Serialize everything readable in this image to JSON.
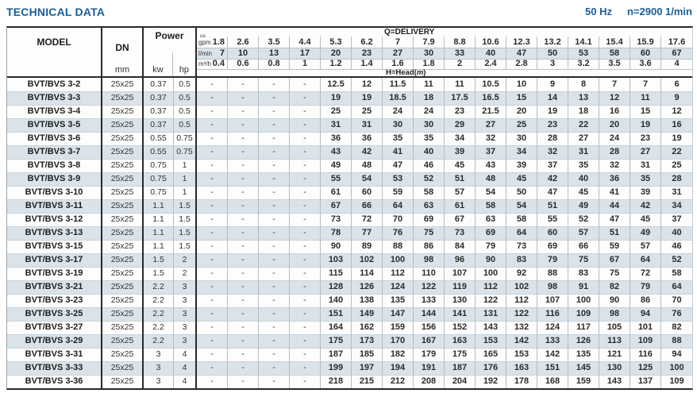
{
  "page": {
    "title": "TECHNICAL DATA",
    "frequency": "50 Hz",
    "speed": "n=2900 1/min"
  },
  "colors": {
    "accent_blue": "#1b5e97",
    "row_stripe": "#d9e3e9",
    "border_dark": "#2a2a2a"
  },
  "table": {
    "headers": {
      "model": "MODEL",
      "dn": "DN",
      "dn_unit": "mm",
      "power": "Power",
      "power_unit_kw": "kw",
      "power_unit_hp": "hp",
      "delivery_title": "Q=DELIVERY",
      "head_prefix": "H=Head(",
      "head_unit_italic": "m",
      "head_suffix": ")",
      "unit_rows": [
        {
          "label_top": "us",
          "label": "gpm",
          "values": [
            "1.8",
            "2.6",
            "3.5",
            "4.4",
            "5.3",
            "6.2",
            "7",
            "7.9",
            "8.8",
            "10.6",
            "12.3",
            "13.2",
            "14.1",
            "15.4",
            "15.9",
            "17.6"
          ]
        },
        {
          "label": "l/min",
          "values": [
            "7",
            "10",
            "13",
            "17",
            "20",
            "23",
            "27",
            "30",
            "33",
            "40",
            "47",
            "50",
            "53",
            "58",
            "60",
            "67"
          ]
        },
        {
          "label": "m³/h",
          "values": [
            "0.4",
            "0.6",
            "0.8",
            "1",
            "1.2",
            "1.4",
            "1.6",
            "1.8",
            "2",
            "2.4",
            "2.8",
            "3",
            "3.2",
            "3.5",
            "3.6",
            "4"
          ]
        }
      ]
    },
    "rows": [
      {
        "model": "BVT/BVS 3-2",
        "dn": "25x25",
        "kw": "0.37",
        "hp": "0.5",
        "head": [
          "-",
          "-",
          "-",
          "-",
          "12.5",
          "12",
          "11.5",
          "11",
          "11",
          "10.5",
          "10",
          "9",
          "8",
          "7",
          "7",
          "6"
        ]
      },
      {
        "model": "BVT/BVS 3-3",
        "dn": "25x25",
        "kw": "0.37",
        "hp": "0.5",
        "head": [
          "-",
          "-",
          "-",
          "-",
          "19",
          "19",
          "18.5",
          "18",
          "17.5",
          "16.5",
          "15",
          "14",
          "13",
          "12",
          "11",
          "9"
        ]
      },
      {
        "model": "BVT/BVS 3-4",
        "dn": "25x25",
        "kw": "0.37",
        "hp": "0.5",
        "head": [
          "-",
          "-",
          "-",
          "-",
          "25",
          "25",
          "24",
          "24",
          "23",
          "21.5",
          "20",
          "19",
          "18",
          "16",
          "15",
          "12"
        ]
      },
      {
        "model": "BVT/BVS 3-5",
        "dn": "25x25",
        "kw": "0.37",
        "hp": "0.5",
        "head": [
          "-",
          "-",
          "-",
          "-",
          "31",
          "31",
          "30",
          "30",
          "29",
          "27",
          "25",
          "23",
          "22",
          "20",
          "19",
          "16"
        ]
      },
      {
        "model": "BVT/BVS 3-6",
        "dn": "25x25",
        "kw": "0.55",
        "hp": "0.75",
        "head": [
          "-",
          "-",
          "-",
          "-",
          "36",
          "36",
          "35",
          "35",
          "34",
          "32",
          "30",
          "28",
          "27",
          "24",
          "23",
          "19"
        ]
      },
      {
        "model": "BVT/BVS 3-7",
        "dn": "25x25",
        "kw": "0.55",
        "hp": "0.75",
        "head": [
          "-",
          "-",
          "-",
          "-",
          "43",
          "42",
          "41",
          "40",
          "39",
          "37",
          "34",
          "32",
          "31",
          "28",
          "27",
          "22"
        ]
      },
      {
        "model": "BVT/BVS 3-8",
        "dn": "25x25",
        "kw": "0.75",
        "hp": "1",
        "head": [
          "-",
          "-",
          "-",
          "-",
          "49",
          "48",
          "47",
          "46",
          "45",
          "43",
          "39",
          "37",
          "35",
          "32",
          "31",
          "25"
        ]
      },
      {
        "model": "BVT/BVS 3-9",
        "dn": "25x25",
        "kw": "0.75",
        "hp": "1",
        "head": [
          "-",
          "-",
          "-",
          "-",
          "55",
          "54",
          "53",
          "52",
          "51",
          "48",
          "45",
          "42",
          "40",
          "36",
          "35",
          "28"
        ]
      },
      {
        "model": "BVT/BVS 3-10",
        "dn": "25x25",
        "kw": "0.75",
        "hp": "1",
        "head": [
          "-",
          "-",
          "-",
          "-",
          "61",
          "60",
          "59",
          "58",
          "57",
          "54",
          "50",
          "47",
          "45",
          "41",
          "39",
          "31"
        ]
      },
      {
        "model": "BVT/BVS 3-11",
        "dn": "25x25",
        "kw": "1.1",
        "hp": "1.5",
        "head": [
          "-",
          "-",
          "-",
          "-",
          "67",
          "66",
          "64",
          "63",
          "61",
          "58",
          "54",
          "51",
          "49",
          "44",
          "42",
          "34"
        ]
      },
      {
        "model": "BVT/BVS 3-12",
        "dn": "25x25",
        "kw": "1.1",
        "hp": "1.5",
        "head": [
          "-",
          "-",
          "-",
          "-",
          "73",
          "72",
          "70",
          "69",
          "67",
          "63",
          "58",
          "55",
          "52",
          "47",
          "45",
          "37"
        ]
      },
      {
        "model": "BVT/BVS 3-13",
        "dn": "25x25",
        "kw": "1.1",
        "hp": "1.5",
        "head": [
          "-",
          "-",
          "-",
          "-",
          "78",
          "77",
          "76",
          "75",
          "73",
          "69",
          "64",
          "60",
          "57",
          "51",
          "49",
          "40"
        ]
      },
      {
        "model": "BVT/BVS 3-15",
        "dn": "25x25",
        "kw": "1.1",
        "hp": "1.5",
        "head": [
          "-",
          "-",
          "-",
          "-",
          "90",
          "89",
          "88",
          "86",
          "84",
          "79",
          "73",
          "69",
          "66",
          "59",
          "57",
          "46"
        ]
      },
      {
        "model": "BVT/BVS 3-17",
        "dn": "25x25",
        "kw": "1.5",
        "hp": "2",
        "head": [
          "-",
          "-",
          "-",
          "-",
          "103",
          "102",
          "100",
          "98",
          "96",
          "90",
          "83",
          "79",
          "75",
          "67",
          "64",
          "52"
        ]
      },
      {
        "model": "BVT/BVS 3-19",
        "dn": "25x25",
        "kw": "1.5",
        "hp": "2",
        "head": [
          "-",
          "-",
          "-",
          "-",
          "115",
          "114",
          "112",
          "110",
          "107",
          "100",
          "92",
          "88",
          "83",
          "75",
          "72",
          "58"
        ]
      },
      {
        "model": "BVT/BVS 3-21",
        "dn": "25x25",
        "kw": "2.2",
        "hp": "3",
        "head": [
          "-",
          "-",
          "-",
          "-",
          "128",
          "126",
          "124",
          "122",
          "119",
          "112",
          "102",
          "98",
          "91",
          "82",
          "79",
          "64"
        ]
      },
      {
        "model": "BVT/BVS 3-23",
        "dn": "25x25",
        "kw": "2.2",
        "hp": "3",
        "head": [
          "-",
          "-",
          "-",
          "-",
          "140",
          "138",
          "135",
          "133",
          "130",
          "122",
          "112",
          "107",
          "100",
          "90",
          "86",
          "70"
        ]
      },
      {
        "model": "BVT/BVS 3-25",
        "dn": "25x25",
        "kw": "2.2",
        "hp": "3",
        "head": [
          "-",
          "-",
          "-",
          "-",
          "151",
          "149",
          "147",
          "144",
          "141",
          "131",
          "122",
          "116",
          "109",
          "98",
          "94",
          "76"
        ]
      },
      {
        "model": "BVT/BVS 3-27",
        "dn": "25x25",
        "kw": "2.2",
        "hp": "3",
        "head": [
          "-",
          "-",
          "-",
          "-",
          "164",
          "162",
          "159",
          "156",
          "152",
          "143",
          "132",
          "124",
          "117",
          "105",
          "101",
          "82"
        ]
      },
      {
        "model": "BVT/BVS 3-29",
        "dn": "25x25",
        "kw": "2.2",
        "hp": "3",
        "head": [
          "-",
          "-",
          "-",
          "-",
          "175",
          "173",
          "170",
          "167",
          "163",
          "153",
          "142",
          "133",
          "126",
          "113",
          "109",
          "88"
        ]
      },
      {
        "model": "BVT/BVS 3-31",
        "dn": "25x25",
        "kw": "3",
        "hp": "4",
        "head": [
          "-",
          "-",
          "-",
          "-",
          "187",
          "185",
          "182",
          "179",
          "175",
          "165",
          "153",
          "142",
          "135",
          "121",
          "116",
          "94"
        ]
      },
      {
        "model": "BVT/BVS 3-33",
        "dn": "25x25",
        "kw": "3",
        "hp": "4",
        "head": [
          "-",
          "-",
          "-",
          "-",
          "199",
          "197",
          "194",
          "191",
          "187",
          "176",
          "163",
          "151",
          "145",
          "130",
          "125",
          "100"
        ]
      },
      {
        "model": "BVT/BVS 3-36",
        "dn": "25x25",
        "kw": "3",
        "hp": "4",
        "head": [
          "-",
          "-",
          "-",
          "-",
          "218",
          "215",
          "212",
          "208",
          "204",
          "192",
          "178",
          "168",
          "159",
          "143",
          "137",
          "109"
        ]
      }
    ]
  }
}
